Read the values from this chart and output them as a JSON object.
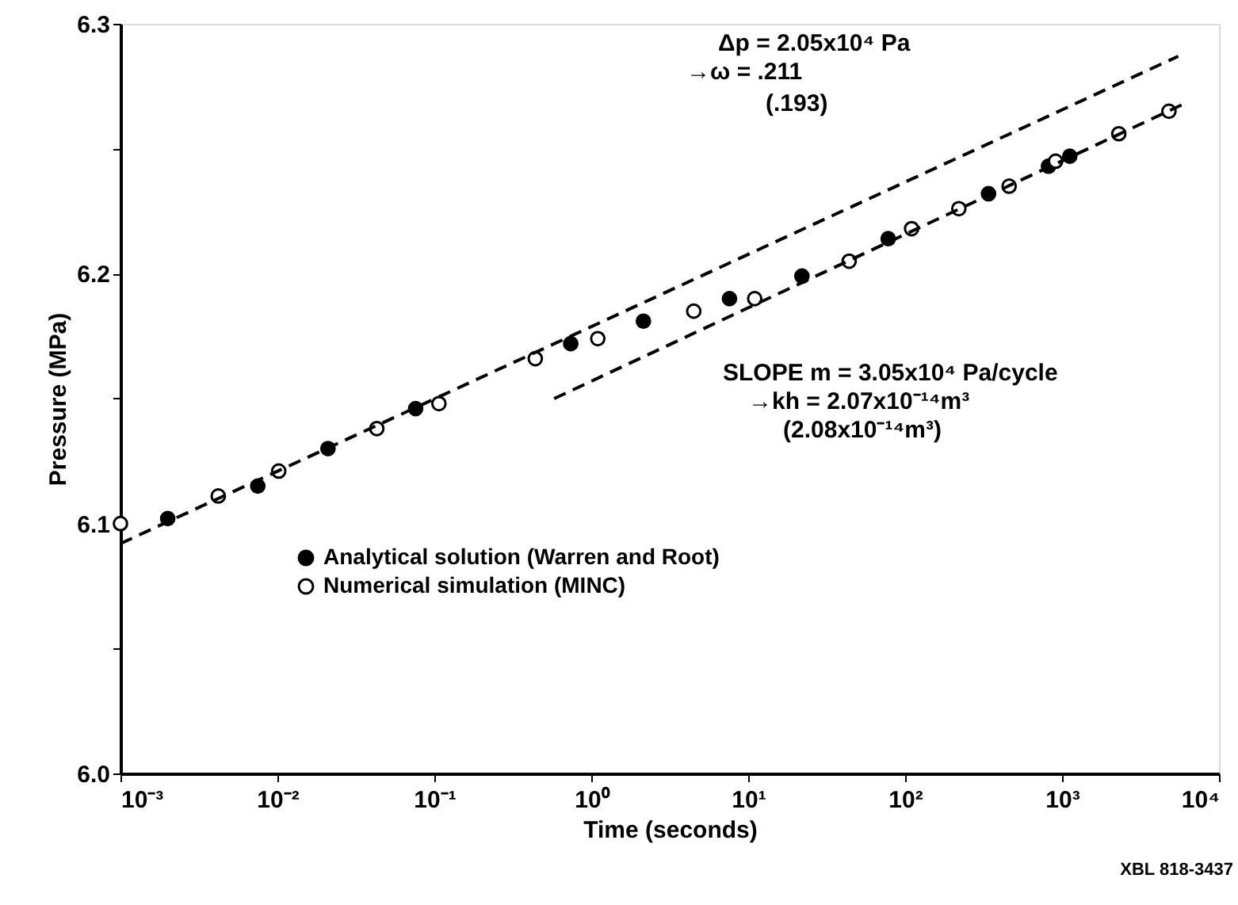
{
  "chart_data": {
    "type": "scatter",
    "xlabel": "Time (seconds)",
    "ylabel": "Pressure (MPa)",
    "log": "x",
    "grid": false,
    "legend": "left",
    "xlim": [
      0.001,
      10000
    ],
    "ylim": [
      6.0,
      6.3
    ],
    "xticks": [
      {
        "value": 0.001,
        "label": "10⁻³"
      },
      {
        "value": 0.01,
        "label": "10⁻²"
      },
      {
        "value": 0.1,
        "label": "10⁻¹"
      },
      {
        "value": 1,
        "label": "10⁰"
      },
      {
        "value": 10,
        "label": "10¹"
      },
      {
        "value": 100,
        "label": "10²"
      },
      {
        "value": 1000,
        "label": "10³"
      },
      {
        "value": 10000,
        "label": "10⁴"
      }
    ],
    "yticks": [
      {
        "value": 6.0,
        "label": "6.0"
      },
      {
        "value": 6.05,
        "label": null
      },
      {
        "value": 6.1,
        "label": "6.1"
      },
      {
        "value": 6.15,
        "label": null
      },
      {
        "value": 6.2,
        "label": "6.2"
      },
      {
        "value": 6.25,
        "label": null
      },
      {
        "value": 6.3,
        "label": "6.3"
      }
    ],
    "series": [
      {
        "name": "Analytical solution (Warren and Root)",
        "color": "#000000",
        "marker": "circle",
        "x": [
          0.002,
          0.0075,
          0.021,
          0.076,
          0.74,
          2.15,
          7.6,
          22,
          78,
          340,
          820,
          1120
        ],
        "values": [
          6.102,
          6.115,
          6.13,
          6.146,
          6.172,
          6.181,
          6.19,
          6.199,
          6.214,
          6.232,
          6.243,
          6.247
        ]
      },
      {
        "name": "Numerical simulation (MINC)",
        "color": "#000000",
        "marker": "circle",
        "x": [
          0.001,
          0.0042,
          0.0102,
          0.043,
          0.107,
          0.44,
          1.1,
          4.5,
          11,
          44,
          110,
          220,
          460,
          910,
          2300,
          4800
        ],
        "values": [
          6.1,
          6.111,
          6.121,
          6.138,
          6.148,
          6.166,
          6.174,
          6.185,
          6.19,
          6.205,
          6.218,
          6.226,
          6.235,
          6.245,
          6.256,
          6.265
        ]
      },
      {
        "type": "line",
        "line_style": "dashed",
        "color": "#000000",
        "x": [
          0.001,
          5500
        ],
        "values": [
          6.092,
          6.287
        ]
      },
      {
        "type": "line",
        "line_style": "dashed",
        "color": "#000000",
        "x": [
          0.58,
          6000
        ],
        "values": [
          6.15,
          6.268
        ]
      }
    ],
    "annotations": [
      "Δp = 2.05x10⁴ Pa",
      "→ω = .211",
      "(.193)",
      "SLOPE m = 3.05x10⁴ Pa/cycle",
      "→kh = 2.07x10⁻¹⁴m³",
      "(2.08x10⁻¹⁴m³)",
      "XBL 818-3437"
    ]
  }
}
